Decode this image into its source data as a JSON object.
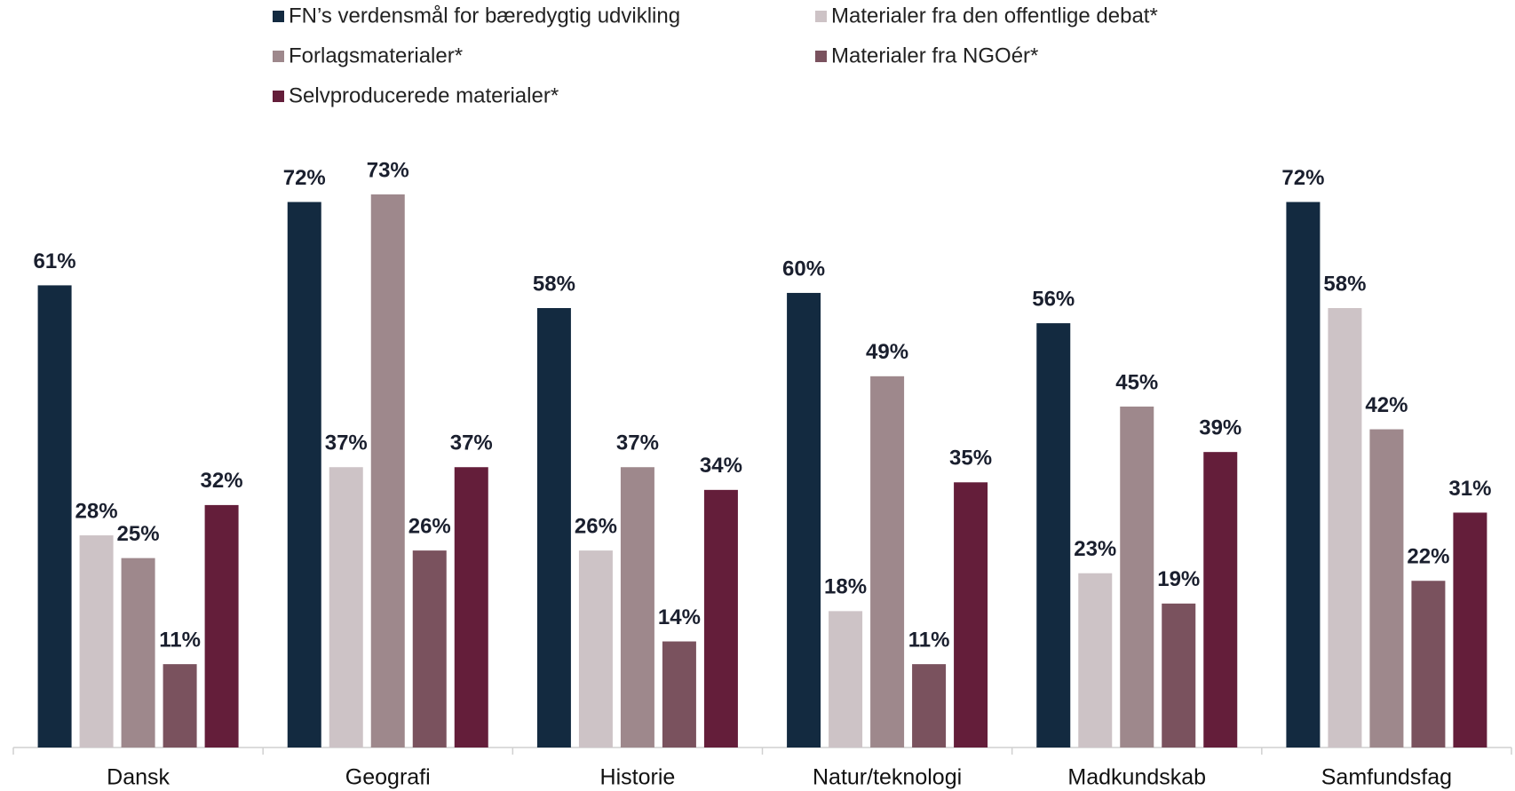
{
  "chart_data": {
    "type": "bar",
    "categories": [
      "Dansk",
      "Geografi",
      "Historie",
      "Natur/teknologi",
      "Madkundskab",
      "Samfundsfag"
    ],
    "series": [
      {
        "name": "FN’s verdensmål for bæredygtig udvikling",
        "color": "#132a40",
        "values": [
          61,
          72,
          58,
          60,
          56,
          72
        ],
        "value_labels": [
          "61%",
          "72%",
          "58%",
          "60%",
          "56%",
          "72%"
        ]
      },
      {
        "name": "Materialer fra den offentlige debat*",
        "color": "#cdc3c6",
        "values": [
          28,
          37,
          26,
          18,
          23,
          58
        ],
        "value_labels": [
          "28%",
          "37%",
          "26%",
          "18%",
          "23%",
          "58%"
        ]
      },
      {
        "name": "Forlagsmaterialer*",
        "color": "#9e888c",
        "values": [
          25,
          73,
          37,
          49,
          45,
          42
        ],
        "value_labels": [
          "25%",
          "73%",
          "37%",
          "49%",
          "45%",
          "42%"
        ]
      },
      {
        "name": "Materialer fra NGOér*",
        "color": "#7a525e",
        "values": [
          11,
          26,
          14,
          11,
          19,
          22
        ],
        "value_labels": [
          "11%",
          "26%",
          "14%",
          "11%",
          "19%",
          "22%"
        ]
      },
      {
        "name": "Selvproducerede materialer*",
        "color": "#641e3a",
        "values": [
          32,
          37,
          34,
          35,
          39,
          31
        ],
        "value_labels": [
          "32%",
          "37%",
          "34%",
          "35%",
          "39%",
          "31%"
        ]
      }
    ]
  }
}
